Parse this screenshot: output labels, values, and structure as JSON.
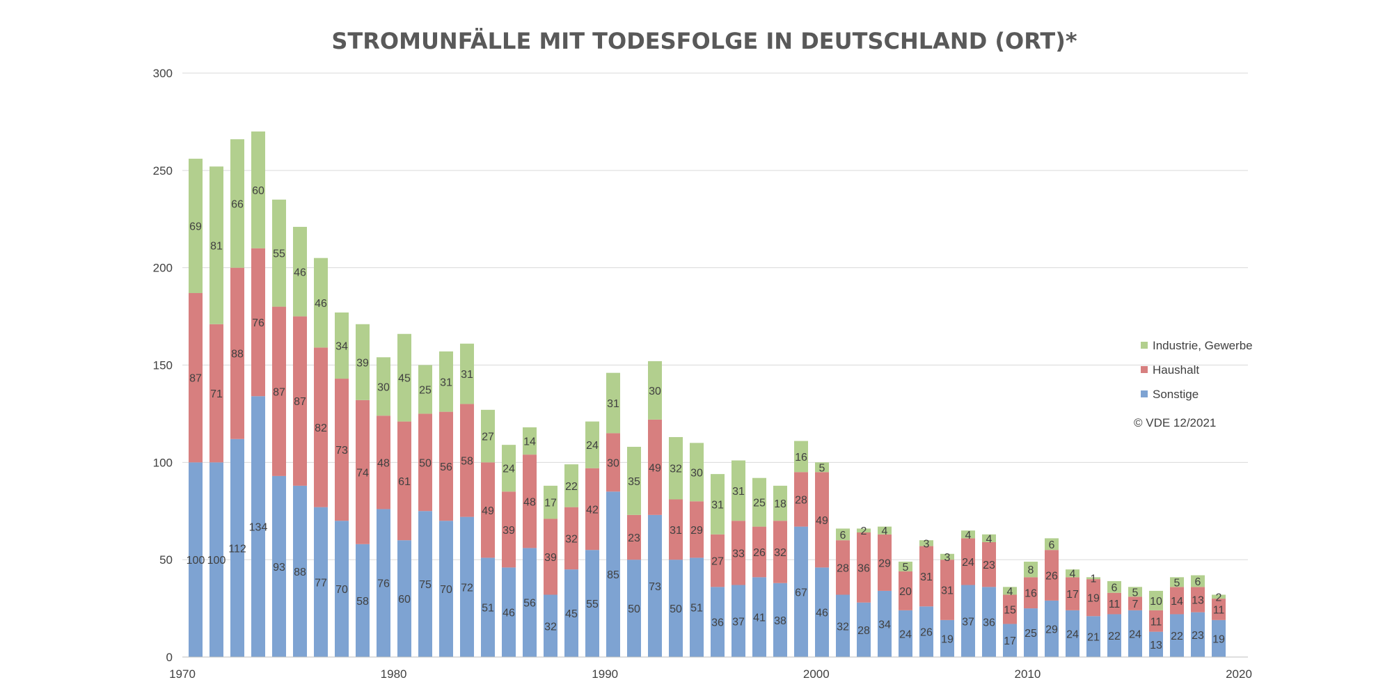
{
  "chart_data": {
    "type": "bar",
    "stacked": true,
    "title": "STROMUNFÄLLE MIT TODESFOLGE IN DEUTSCHLAND (ORT)*",
    "copyright": "© VDE 12/2021",
    "x": [
      1970,
      1971,
      1972,
      1973,
      1974,
      1975,
      1976,
      1977,
      1978,
      1979,
      1980,
      1981,
      1982,
      1983,
      1984,
      1985,
      1986,
      1987,
      1988,
      1989,
      1990,
      1991,
      1992,
      1993,
      1994,
      1995,
      1996,
      1997,
      1998,
      1999,
      2000,
      2001,
      2002,
      2003,
      2004,
      2005,
      2006,
      2007,
      2008,
      2009,
      2010,
      2011,
      2012,
      2013,
      2014,
      2015,
      2016,
      2017,
      2018,
      2019
    ],
    "xlim": [
      1970,
      2020
    ],
    "x_ticks": [
      1970,
      1980,
      1990,
      2000,
      2010,
      2020
    ],
    "ylim": [
      0,
      300
    ],
    "y_ticks": [
      0,
      50,
      100,
      150,
      200,
      250,
      300
    ],
    "grid": true,
    "legend_position": "right",
    "series": [
      {
        "name": "Sonstige",
        "color": "#7ea3d2",
        "values": [
          100,
          100,
          112,
          134,
          93,
          88,
          77,
          70,
          58,
          76,
          60,
          75,
          70,
          72,
          51,
          46,
          56,
          32,
          45,
          55,
          85,
          50,
          73,
          50,
          51,
          36,
          37,
          41,
          38,
          67,
          46,
          32,
          28,
          34,
          24,
          26,
          19,
          37,
          36,
          17,
          25,
          29,
          24,
          21,
          22,
          24,
          13,
          22,
          23,
          19
        ]
      },
      {
        "name": "Haushalt",
        "color": "#d77f7f",
        "values": [
          87,
          71,
          88,
          76,
          87,
          87,
          82,
          73,
          74,
          48,
          61,
          50,
          56,
          58,
          49,
          39,
          48,
          39,
          32,
          42,
          30,
          23,
          49,
          31,
          29,
          27,
          33,
          26,
          32,
          28,
          49,
          28,
          36,
          29,
          20,
          31,
          31,
          24,
          23,
          15,
          16,
          26,
          17,
          19,
          11,
          7,
          11,
          14,
          13,
          11
        ]
      },
      {
        "name": "Industrie, Gewerbe",
        "color": "#b2cf8e",
        "values": [
          69,
          81,
          66,
          60,
          55,
          46,
          46,
          34,
          39,
          30,
          45,
          25,
          31,
          31,
          27,
          24,
          14,
          17,
          22,
          24,
          31,
          35,
          30,
          32,
          30,
          31,
          31,
          25,
          18,
          16,
          5,
          6,
          2,
          4,
          5,
          3,
          3,
          4,
          4,
          4,
          8,
          6,
          4,
          1,
          6,
          5,
          10,
          5,
          6,
          2
        ]
      }
    ]
  }
}
